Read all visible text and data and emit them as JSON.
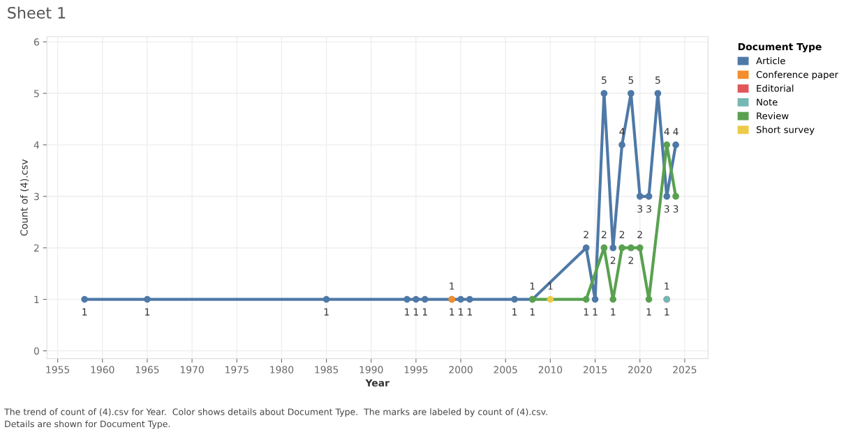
{
  "chart_data": {
    "type": "line",
    "title": "Sheet 1",
    "xlabel": "Year",
    "ylabel": "Count of (4).csv",
    "legend_title": "Document Type",
    "series": [
      {
        "name": "Article",
        "color": "#4e79a7",
        "x": [
          1958,
          1965,
          1985,
          1994,
          1995,
          1996,
          1999,
          2000,
          2001,
          2006,
          2008,
          2014,
          2015,
          2016,
          2017,
          2018,
          2019,
          2020,
          2021,
          2022,
          2023,
          2024
        ],
        "values": [
          1,
          1,
          1,
          1,
          1,
          1,
          1,
          1,
          1,
          1,
          1,
          2,
          1,
          5,
          2,
          4,
          5,
          3,
          3,
          5,
          3,
          4
        ]
      },
      {
        "name": "Conference paper",
        "color": "#f28e2b",
        "x": [
          1999
        ],
        "values": [
          1
        ]
      },
      {
        "name": "Editorial",
        "color": "#e15759",
        "x": [
          2023
        ],
        "values": [
          1
        ]
      },
      {
        "name": "Note",
        "color": "#76b7b2",
        "x": [
          2023
        ],
        "values": [
          1
        ]
      },
      {
        "name": "Review",
        "color": "#59a14f",
        "x": [
          2008,
          2014,
          2016,
          2017,
          2018,
          2019,
          2020,
          2021,
          2023,
          2024
        ],
        "values": [
          1,
          1,
          2,
          1,
          2,
          2,
          2,
          1,
          4,
          3
        ]
      },
      {
        "name": "Short survey",
        "color": "#edc948",
        "x": [
          2010
        ],
        "values": [
          1
        ]
      }
    ],
    "xlim": [
      1953.8,
      2027.6
    ],
    "xticks": [
      1955,
      1960,
      1965,
      1970,
      1975,
      1980,
      1985,
      1990,
      1995,
      2000,
      2005,
      2010,
      2015,
      2020,
      2025
    ],
    "ylim": [
      -0.15,
      6.1
    ],
    "yticks": [
      0,
      1,
      2,
      3,
      4,
      5,
      6
    ],
    "grid": true,
    "legend": "top right",
    "marker": "circle",
    "line_style": "solid",
    "data_labels": true,
    "annotations": [
      "The trend of count of (4).csv for Year.  Color shows details about Document Type.  The marks are labeled by count of (4).csv.",
      "Details are shown for Document Type."
    ]
  }
}
